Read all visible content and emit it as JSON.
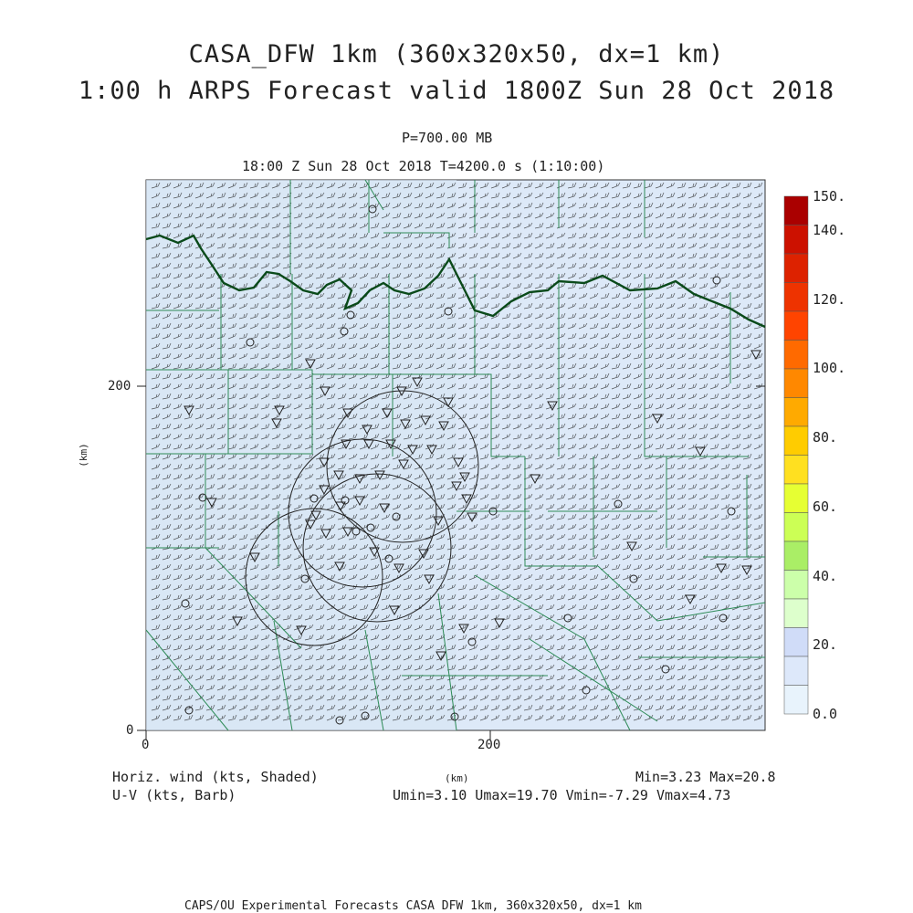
{
  "title": {
    "line1": "CASA_DFW 1km (360x320x50, dx=1 km)",
    "line2": "1:00 h ARPS Forecast valid 1800Z Sun 28 Oct 2018"
  },
  "subtitle": {
    "pressure": "P=700.00 MB",
    "time": "18:00 Z Sun 28 Oct 2018   T=4200.0 s (1:10:00)"
  },
  "axes": {
    "y_unit": "(km)",
    "x_unit": "(km)",
    "y_ticks": [
      "0",
      "200"
    ],
    "x_ticks": [
      "0",
      "200"
    ]
  },
  "legend": {
    "left_line1": "Horiz. wind (kts, Shaded)",
    "left_line2": "U-V (kts, Barb)",
    "right_line1": "Min=3.23 Max=20.8",
    "right_line2": "Umin=3.10 Umax=19.70 Vmin=-7.29 Vmax=4.73"
  },
  "colorbar": {
    "labels": [
      "150.",
      "140.",
      "120.",
      "100.",
      "80.",
      "60.",
      "40.",
      "20.",
      "0.0"
    ],
    "colors": [
      "#aa0000",
      "#cc1100",
      "#dd2200",
      "#ee3300",
      "#ff4400",
      "#ff6a00",
      "#ff8800",
      "#ffaa00",
      "#ffcc00",
      "#ffe020",
      "#e6ff33",
      "#ccff55",
      "#aaee66",
      "#ccffaa",
      "#ddffcc",
      "#d0dcf8",
      "#dde8fa",
      "#e8f3fc"
    ]
  },
  "footer": "CAPS/OU Experimental Forecasts  CASA DFW 1km, 360x320x50, dx=1 km"
}
